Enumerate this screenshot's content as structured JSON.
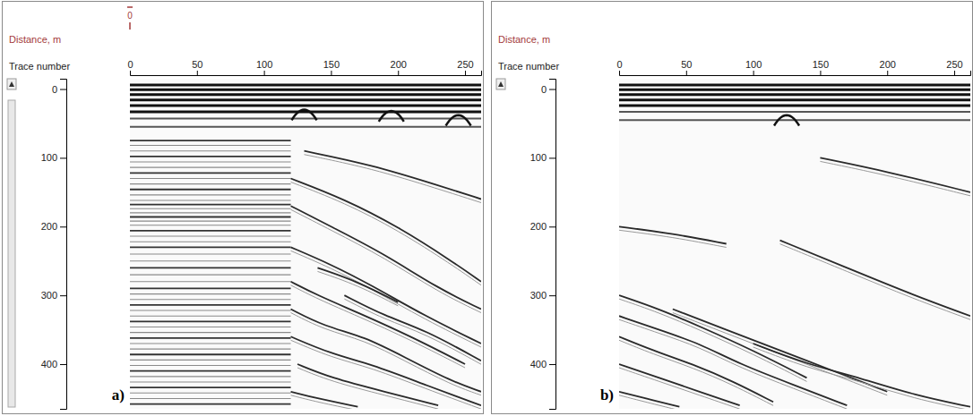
{
  "chart_data": [
    {
      "type": "radargram",
      "panel": "a)",
      "top_label": "Distance, m",
      "marker": {
        "label": "0",
        "x": 0
      },
      "x_label": "Trace number",
      "xlim": [
        0,
        262
      ],
      "ylim": [
        -15,
        465
      ],
      "xticks": [
        0,
        50,
        100,
        150,
        200,
        250
      ],
      "yticks": [
        0,
        100,
        200,
        300,
        400
      ],
      "bands": [
        -6,
        1,
        8,
        16,
        24,
        33,
        43,
        55
      ],
      "hyperbolas": [
        {
          "x": 130,
          "y": 30
        },
        {
          "x": 195,
          "y": 32
        },
        {
          "x": 245,
          "y": 38
        }
      ],
      "ringing": {
        "x": [
          0,
          120
        ],
        "y": [
          75,
          82,
          90,
          98,
          106,
          114,
          122,
          130,
          138,
          146,
          154,
          162,
          168,
          174,
          180,
          186,
          192,
          198,
          206,
          214,
          222,
          230,
          240,
          250,
          260,
          270,
          280,
          290,
          298,
          306,
          314,
          322,
          330,
          338,
          346,
          354,
          362,
          370,
          378,
          386,
          394,
          402,
          410,
          418,
          426,
          434,
          442,
          450,
          458
        ]
      },
      "reflectors": [
        {
          "x": [
            130,
            180,
            230,
            262
          ],
          "y": [
            90,
            110,
            140,
            160
          ]
        },
        {
          "x": [
            120,
            160,
            200,
            240,
            262
          ],
          "y": [
            130,
            160,
            200,
            250,
            280
          ]
        },
        {
          "x": [
            120,
            150,
            190,
            230,
            262
          ],
          "y": [
            170,
            200,
            240,
            290,
            320
          ]
        },
        {
          "x": [
            120,
            150,
            180,
            220,
            262
          ],
          "y": [
            230,
            255,
            285,
            330,
            370
          ]
        },
        {
          "x": [
            140,
            170,
            200
          ],
          "y": [
            260,
            280,
            310
          ]
        },
        {
          "x": [
            120,
            140,
            170,
            210,
            250
          ],
          "y": [
            280,
            300,
            325,
            360,
            400
          ]
        },
        {
          "x": [
            160,
            190,
            220,
            262
          ],
          "y": [
            300,
            330,
            350,
            395
          ]
        },
        {
          "x": [
            120,
            145,
            175,
            205,
            240,
            262
          ],
          "y": [
            320,
            345,
            360,
            390,
            425,
            440
          ]
        },
        {
          "x": [
            120,
            150,
            180,
            220,
            262
          ],
          "y": [
            360,
            385,
            400,
            430,
            460
          ]
        },
        {
          "x": [
            125,
            150,
            190,
            230
          ],
          "y": [
            400,
            420,
            440,
            460
          ]
        },
        {
          "x": [
            120,
            140,
            170
          ],
          "y": [
            440,
            450,
            462
          ]
        }
      ]
    },
    {
      "type": "radargram",
      "panel": "b)",
      "top_label": "Distance, m",
      "x_label": "Trace number",
      "xlim": [
        0,
        262
      ],
      "ylim": [
        -15,
        465
      ],
      "xticks": [
        0,
        50,
        100,
        150,
        200,
        250
      ],
      "yticks": [
        0,
        100,
        200,
        300,
        400
      ],
      "bands": [
        -6,
        1,
        8,
        16,
        24,
        33,
        45
      ],
      "hyperbolas": [
        {
          "x": 125,
          "y": 38
        }
      ],
      "reflectors": [
        {
          "x": [
            150,
            200,
            262
          ],
          "y": [
            100,
            120,
            150
          ]
        },
        {
          "x": [
            0,
            40,
            80
          ],
          "y": [
            200,
            210,
            225
          ]
        },
        {
          "x": [
            120,
            170,
            220,
            262
          ],
          "y": [
            220,
            260,
            300,
            330
          ]
        },
        {
          "x": [
            0,
            30,
            60,
            100,
            140
          ],
          "y": [
            300,
            320,
            345,
            380,
            420
          ]
        },
        {
          "x": [
            40,
            80,
            120,
            160,
            200
          ],
          "y": [
            320,
            350,
            380,
            410,
            440
          ]
        },
        {
          "x": [
            0,
            30,
            60,
            90,
            130,
            170
          ],
          "y": [
            330,
            350,
            370,
            400,
            430,
            460
          ]
        },
        {
          "x": [
            0,
            25,
            55,
            85,
            115
          ],
          "y": [
            360,
            380,
            400,
            425,
            455
          ]
        },
        {
          "x": [
            100,
            140,
            180,
            220,
            262
          ],
          "y": [
            370,
            400,
            420,
            445,
            462
          ]
        },
        {
          "x": [
            0,
            30,
            60,
            90
          ],
          "y": [
            400,
            420,
            440,
            460
          ]
        },
        {
          "x": [
            0,
            20,
            45
          ],
          "y": [
            440,
            450,
            462
          ]
        }
      ]
    }
  ]
}
